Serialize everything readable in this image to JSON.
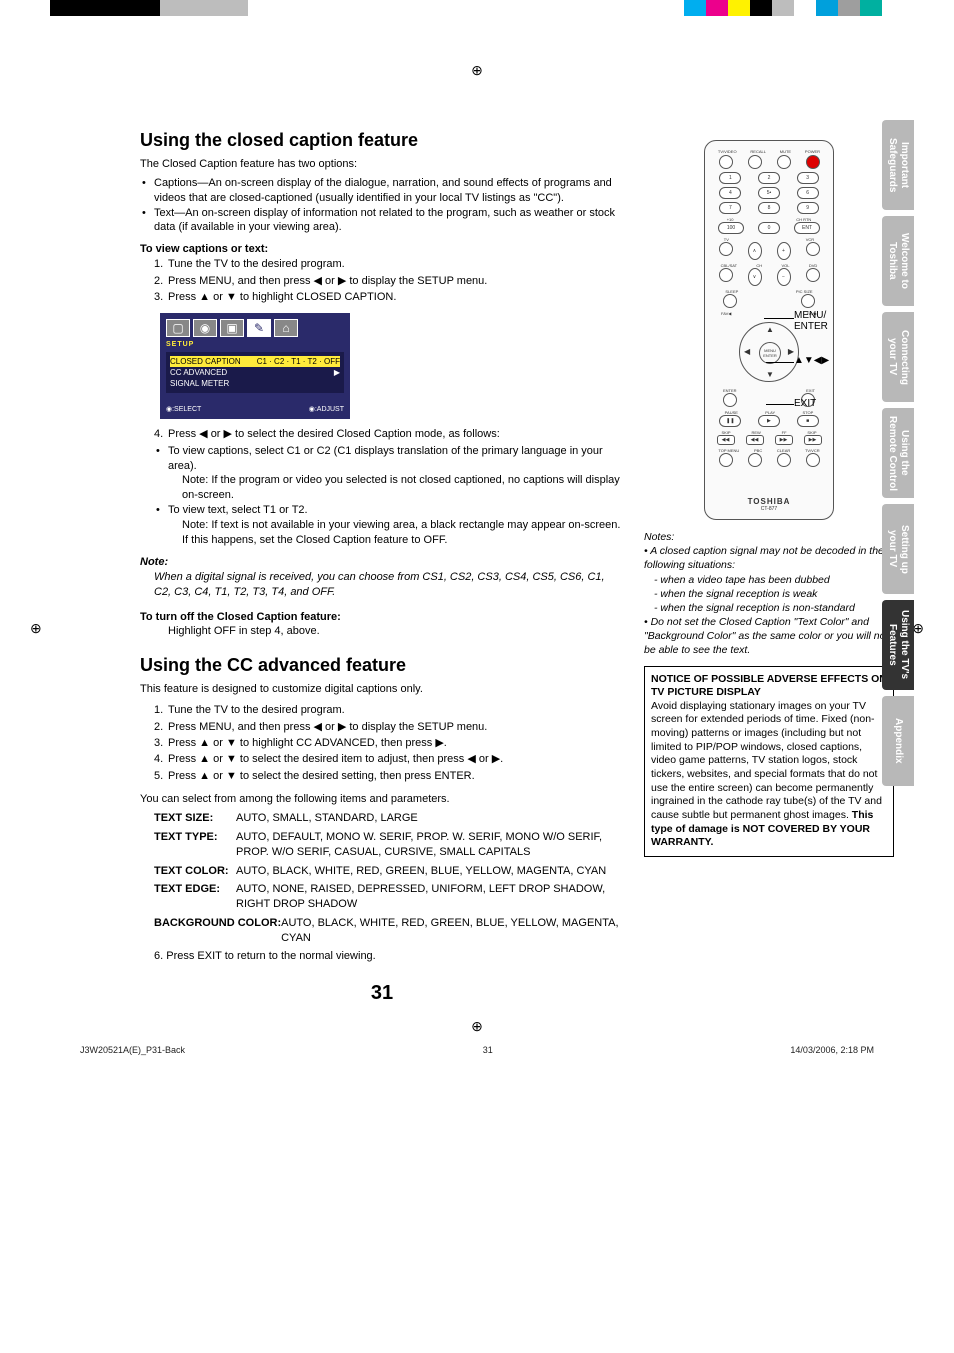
{
  "topBars": {
    "left": [
      "#000000",
      "#000000",
      "#000000",
      "#000000",
      "#000000",
      "#bdbdbd",
      "#bdbdbd",
      "#bdbdbd",
      "#bdbdbd",
      "#ffffff"
    ],
    "right": [
      "#00aeef",
      "#ec008c",
      "#fff200",
      "#000000",
      "#bdbdbd",
      "#ffffff",
      "#00a0dc",
      "#9e9e9e",
      "#00b0a0",
      "#ffffff"
    ]
  },
  "h1": "Using the closed caption feature",
  "intro1": "The Closed Caption feature has two options:",
  "bullets1": [
    "Captions—An on-screen display of the dialogue, narration, and sound effects of programs and videos that are closed-captioned (usually identified in your local TV listings as \"CC\").",
    "Text—An on-screen display of information not related to the program, such as weather or stock data (if available in your viewing area)."
  ],
  "sub1": "To view captions or text:",
  "steps1": [
    {
      "n": "1.",
      "t": "Tune the TV to the desired program."
    },
    {
      "n": "2.",
      "t": "Press MENU, and then press ◀ or ▶ to display the SETUP menu."
    },
    {
      "n": "3.",
      "t": "Press ▲ or ▼ to highlight CLOSED CAPTION."
    }
  ],
  "osd": {
    "label": "SETUP",
    "rows": [
      {
        "l": "CLOSED CAPTION",
        "r": "C1 · C2 · T1 · T2 · OFF",
        "hl": true
      },
      {
        "l": "CC ADVANCED",
        "r": "▶",
        "hl": false
      },
      {
        "l": "SIGNAL METER",
        "r": "",
        "hl": false
      }
    ],
    "footL": "◉:SELECT",
    "footR": "◉:ADJUST"
  },
  "steps2": [
    {
      "n": "4.",
      "t": "Press ◀ or ▶ to select the desired Closed Caption mode, as follows:"
    }
  ],
  "bullets2": [
    "To view captions, select C1 or C2 (C1 displays translation of the primary language in your area)."
  ],
  "note2a": "Note: If the program or video you selected is not closed captioned, no captions will display on-screen.",
  "bullets2b": [
    "To view text, select T1 or T2."
  ],
  "note2b": "Note: If text is not available in your viewing area, a black rectangle may appear on-screen. If this happens, set the Closed Caption feature to OFF.",
  "noteHd": "Note:",
  "noteBody": "When a digital signal is received, you can choose from CS1, CS2, CS3, CS4, CS5, CS6, C1, C2, C3, C4, T1, T2, T3, T4, and OFF.",
  "sub2": "To turn off the Closed Caption feature:",
  "sub2body": "Highlight OFF in step 4, above.",
  "h2": "Using the CC advanced feature",
  "intro2": "This feature is designed to customize digital captions only.",
  "steps3": [
    {
      "n": "1.",
      "t": "Tune the TV to the desired program."
    },
    {
      "n": "2.",
      "t": "Press MENU, and then press ◀ or ▶  to display the SETUP menu."
    },
    {
      "n": "3.",
      "t": "Press ▲ or ▼ to highlight CC ADVANCED, then press ▶."
    },
    {
      "n": "4.",
      "t": "Press ▲ or ▼ to select the desired item to adjust, then press ◀ or ▶."
    },
    {
      "n": "5.",
      "t": "Press ▲ or ▼ to select the desired setting, then press ENTER."
    }
  ],
  "intro3": "You can select from among the following items and parameters.",
  "params": [
    {
      "l": "TEXT SIZE:",
      "v": "AUTO, SMALL, STANDARD, LARGE"
    },
    {
      "l": "TEXT TYPE:",
      "v": "AUTO, DEFAULT, MONO W. SERIF, PROP. W. SERIF, MONO W/O SERIF, PROP. W/O SERIF, CASUAL, CURSIVE, SMALL CAPITALS"
    },
    {
      "l": "TEXT COLOR:",
      "v": "AUTO, BLACK, WHITE, RED, GREEN, BLUE, YELLOW, MAGENTA, CYAN"
    },
    {
      "l": "TEXT EDGE:",
      "v": "AUTO, NONE, RAISED, DEPRESSED, UNIFORM, LEFT DROP SHADOW, RIGHT DROP SHADOW"
    },
    {
      "l": "BACKGROUND COLOR:",
      "v": " AUTO, BLACK, WHITE, RED, GREEN, BLUE, YELLOW, MAGENTA, CYAN"
    }
  ],
  "step6": "6. Press EXIT to return to the normal viewing.",
  "callouts": {
    "menu": "MENU/\nENTER",
    "arrows": "▲▼◀▶",
    "exit": "EXIT"
  },
  "sideNotesHd": "Notes:",
  "sideNotes": [
    "• A closed caption signal may not be decoded in the following situations:",
    "  -  when a video tape has been dubbed",
    "  -  when the signal reception is weak",
    "  -  when the signal reception is non-standard",
    "• Do not set the Closed Caption \"Text Color\" and \"Background Color\" as the same color or you will not be able to see the text."
  ],
  "notice": {
    "title": "NOTICE OF POSSIBLE ADVERSE EFFECTS ON TV PICTURE DISPLAY",
    "body": "Avoid displaying stationary images on your TV screen for extended periods of time. Fixed (non-moving) patterns or images (including but not limited to PIP/POP windows, closed captions, video game patterns, TV station logos, stock tickers, websites, and special formats that do not use the entire screen) can become permanently ingrained in the cathode ray tube(s) of the TV and cause subtle but permanent ghost images. ",
    "bold": "This type of damage is NOT COVERED BY YOUR WARRANTY."
  },
  "tabs": [
    {
      "t": "Important\nSafeguards",
      "a": false
    },
    {
      "t": "Welcome to\nToshiba",
      "a": false
    },
    {
      "t": "Connecting\nyour TV",
      "a": false
    },
    {
      "t": "Using the\nRemote Control",
      "a": false
    },
    {
      "t": "Setting up\nyour TV",
      "a": false
    },
    {
      "t": "Using the TV's\nFeatures",
      "a": true
    },
    {
      "t": "Appendix",
      "a": false
    }
  ],
  "pageNum": "31",
  "footer": {
    "l": "J3W20521A(E)_P31-Back",
    "c": "31",
    "r": "14/03/2006, 2:18 PM"
  },
  "remoteLogo": "TOSHIBA",
  "remoteModel": "CT-877"
}
